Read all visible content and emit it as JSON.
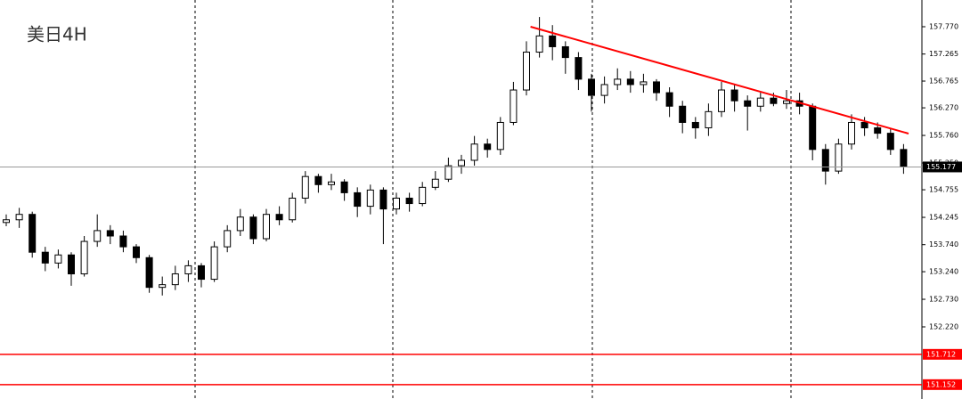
{
  "chart_data": {
    "type": "candlestick",
    "title": "美日4H",
    "open": [
      154.15,
      154.2,
      154.3,
      153.6,
      153.4,
      153.55,
      153.2,
      153.8,
      154.0,
      153.9,
      153.7,
      153.5,
      152.95,
      153.0,
      153.2,
      153.35,
      153.1,
      153.7,
      154.0,
      154.25,
      153.85,
      154.3,
      154.2,
      154.6,
      155.0,
      154.85,
      154.9,
      154.7,
      154.45,
      154.75,
      154.4,
      154.6,
      154.5,
      154.8,
      154.95,
      155.2,
      155.3,
      155.6,
      155.5,
      156.0,
      156.6,
      157.3,
      157.6,
      157.4,
      157.2,
      156.8,
      156.5,
      156.7,
      156.8,
      156.7,
      156.75,
      156.55,
      156.3,
      156.0,
      155.9,
      156.2,
      156.6,
      156.4,
      156.3,
      156.45,
      156.35,
      156.4,
      156.3,
      155.5,
      155.1,
      155.6,
      156.0,
      155.9,
      155.8,
      155.5
    ],
    "high": [
      154.3,
      154.42,
      154.35,
      153.7,
      153.65,
      153.6,
      153.9,
      154.3,
      154.1,
      154.0,
      153.75,
      153.55,
      153.15,
      153.35,
      153.45,
      153.4,
      153.8,
      154.1,
      154.4,
      154.3,
      154.4,
      154.45,
      154.7,
      155.1,
      155.05,
      155.05,
      154.95,
      154.8,
      154.85,
      154.8,
      154.7,
      154.7,
      154.9,
      155.1,
      155.35,
      155.4,
      155.75,
      155.7,
      156.1,
      156.75,
      157.5,
      157.95,
      157.8,
      157.5,
      157.3,
      156.9,
      156.85,
      157.0,
      156.95,
      156.9,
      156.8,
      156.65,
      156.4,
      156.1,
      156.35,
      156.75,
      156.7,
      156.5,
      156.55,
      156.55,
      156.6,
      156.55,
      156.35,
      155.6,
      155.7,
      156.15,
      156.1,
      156.0,
      155.9,
      155.6
    ],
    "low": [
      154.08,
      154.05,
      153.5,
      153.25,
      153.3,
      152.98,
      153.15,
      153.7,
      153.75,
      153.6,
      153.4,
      152.85,
      152.8,
      152.9,
      153.05,
      152.95,
      153.05,
      153.6,
      153.9,
      153.75,
      153.8,
      154.1,
      154.15,
      154.5,
      154.7,
      154.75,
      154.55,
      154.25,
      154.3,
      153.75,
      154.3,
      154.35,
      154.45,
      154.75,
      154.9,
      155.05,
      155.2,
      155.35,
      155.4,
      155.95,
      156.5,
      157.2,
      157.15,
      156.9,
      156.6,
      156.2,
      156.35,
      156.6,
      156.55,
      156.55,
      156.4,
      156.1,
      155.8,
      155.7,
      155.75,
      156.1,
      156.2,
      155.85,
      156.2,
      156.3,
      156.25,
      156.15,
      155.3,
      154.85,
      155.05,
      155.5,
      155.75,
      155.7,
      155.4,
      155.05
    ],
    "close": [
      154.2,
      154.3,
      153.6,
      153.4,
      153.55,
      153.2,
      153.8,
      154.0,
      153.9,
      153.7,
      153.5,
      152.95,
      153.0,
      153.2,
      153.35,
      153.1,
      153.7,
      154.0,
      154.25,
      153.85,
      154.3,
      154.2,
      154.6,
      155.0,
      154.85,
      154.9,
      154.7,
      154.45,
      154.75,
      154.4,
      154.6,
      154.5,
      154.8,
      154.95,
      155.2,
      155.3,
      155.6,
      155.5,
      156.0,
      156.6,
      157.3,
      157.6,
      157.4,
      157.2,
      156.8,
      156.5,
      156.7,
      156.8,
      156.7,
      156.75,
      156.55,
      156.3,
      156.0,
      155.9,
      156.2,
      156.6,
      156.4,
      156.3,
      156.45,
      156.35,
      156.4,
      156.3,
      155.5,
      155.1,
      155.6,
      156.0,
      155.9,
      155.8,
      155.5,
      155.18
    ],
    "ylim": [
      150.886,
      158.264
    ],
    "yticks": [
      {
        "value": 157.77,
        "label": "157.770"
      },
      157.265,
      156.765,
      {
        "value": 156.27,
        "label": "156.270"
      },
      {
        "value": 155.76,
        "label": "155.760"
      },
      {
        "value": 155.25,
        "label": "155.250"
      },
      154.755,
      154.245,
      {
        "value": 153.74,
        "label": "153.740"
      },
      {
        "value": 153.24,
        "label": "153.240"
      },
      {
        "value": 152.73,
        "label": "152.730"
      },
      {
        "value": 152.22,
        "label": "152.220"
      }
    ],
    "levels": [
      {
        "value": 155.177,
        "color": "#999999",
        "label_bg": "#000000"
      },
      {
        "value": 151.712,
        "color": "#ff0000",
        "label_bg": "#ff0000"
      },
      {
        "value": 151.152,
        "color": "#ff0000",
        "label_bg": "#ff0000"
      }
    ],
    "trendline": {
      "start": 157.77,
      "end": 155.794,
      "color": "#ff0000"
    },
    "up_color": "#ffffff",
    "down_color": "#000000"
  }
}
